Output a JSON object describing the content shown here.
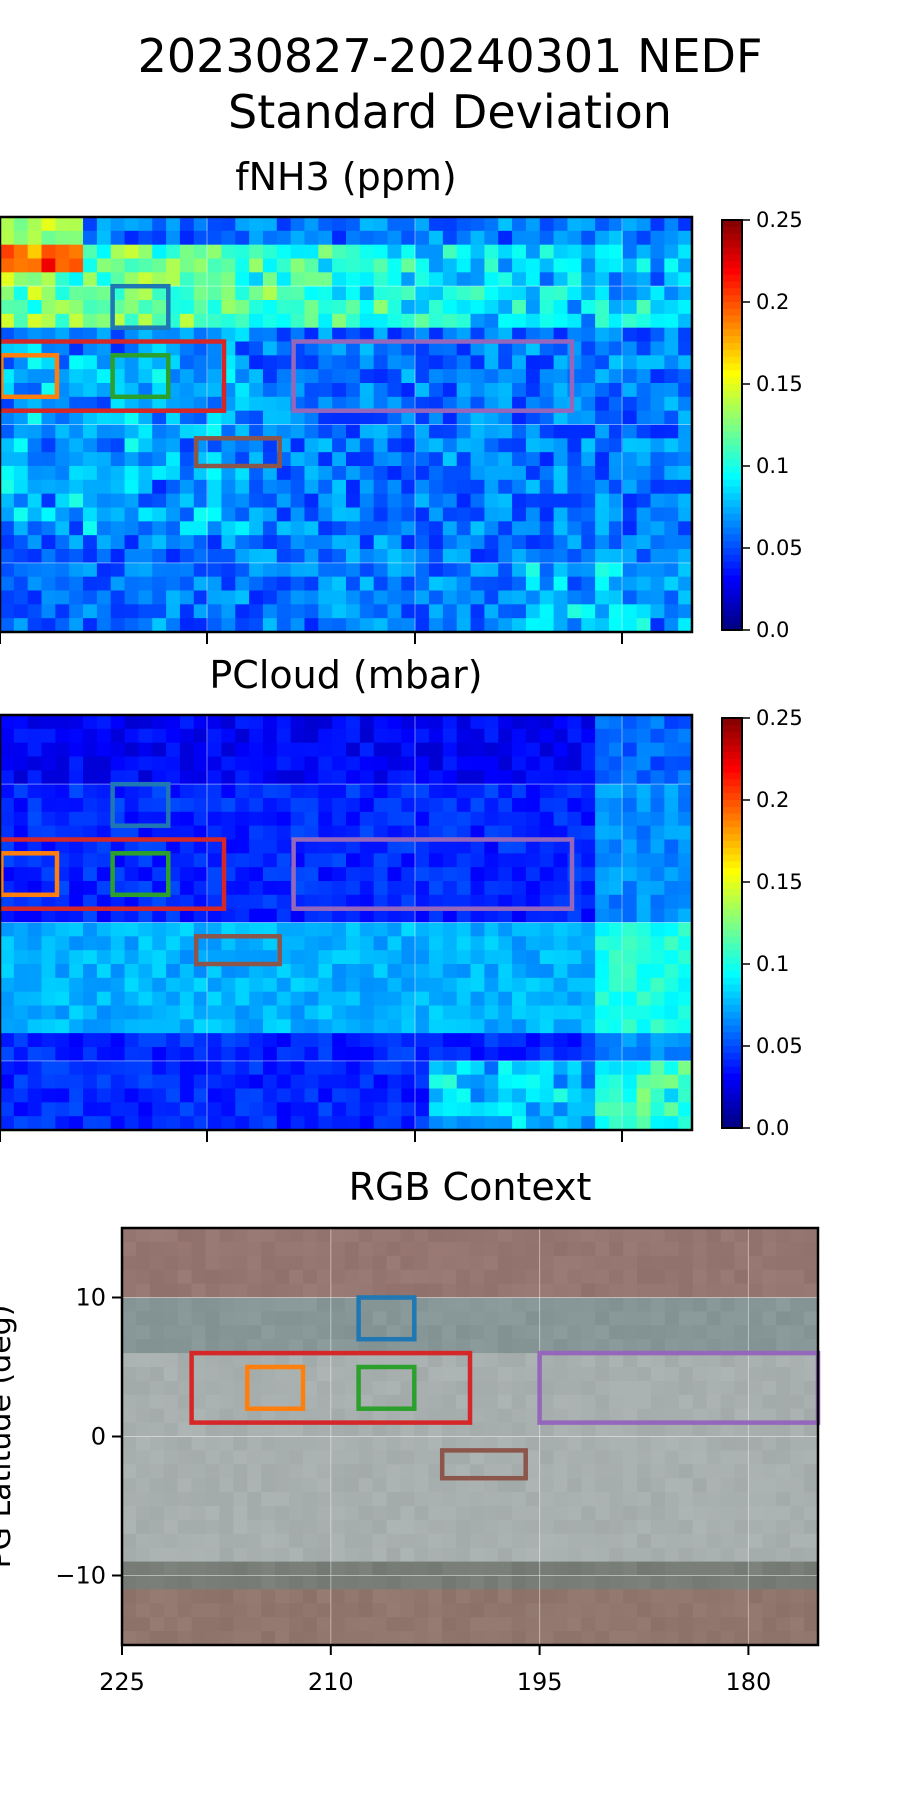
{
  "figure": {
    "title_line1": "20230827-20240301 NEDF",
    "title_line2": "Standard Deviation"
  },
  "chart_data": [
    {
      "type": "heatmap",
      "title": "fNH3 (ppm)",
      "colorbar": {
        "colormap": "jet",
        "range": [
          0.0,
          0.25
        ],
        "ticks": [
          "0.0",
          "0.05",
          "0.1",
          "0.15",
          "0.2",
          "0.25"
        ]
      },
      "xlim": [
        225,
        175
      ],
      "ylim": [
        -15,
        15
      ],
      "grid": true,
      "x_tick_labels_visible": false,
      "description_of_field": "low values (0.02-0.06) across most of the map, higher values (0.08-0.2) in a band near latitude +9 to +12 and in the upper-left corner"
    },
    {
      "type": "heatmap",
      "title": "PCloud (mbar)",
      "colorbar": {
        "colormap": "jet",
        "range": [
          0.0,
          0.25
        ],
        "ticks": [
          "0.0",
          "0.05",
          "0.1",
          "0.15",
          "0.2",
          "0.25"
        ]
      },
      "xlim": [
        225,
        175
      ],
      "ylim": [
        -15,
        15
      ],
      "grid": true,
      "x_tick_labels_visible": false
    },
    {
      "type": "heatmap",
      "title": "RGB Context",
      "xlim": [
        225,
        175
      ],
      "ylim": [
        -15,
        15
      ],
      "xticks": [
        225,
        210,
        195,
        180
      ],
      "xtick_labels": [
        "225",
        "210",
        "195",
        "180"
      ],
      "yticks": [
        10,
        0,
        -10
      ],
      "ytick_labels": [
        "10",
        "0",
        "−10"
      ],
      "ylabel": "PG Latitude (deg)",
      "grid": true
    }
  ],
  "regions": [
    {
      "name": "blue",
      "color": "#1f77b4",
      "lon": [
        208,
        204
      ],
      "lat": [
        7,
        10
      ]
    },
    {
      "name": "red",
      "color": "#d62728",
      "lon": [
        220,
        200
      ],
      "lat": [
        1,
        6
      ]
    },
    {
      "name": "orange",
      "color": "#ff7f0e",
      "lon": [
        216,
        212
      ],
      "lat": [
        2,
        5
      ]
    },
    {
      "name": "green",
      "color": "#2ca02c",
      "lon": [
        208,
        204
      ],
      "lat": [
        2,
        5
      ]
    },
    {
      "name": "purple",
      "color": "#9467bd",
      "lon": [
        195,
        175
      ],
      "lat": [
        1,
        6
      ]
    },
    {
      "name": "brown",
      "color": "#8c564b",
      "lon": [
        202,
        196
      ],
      "lat": [
        -3,
        -1
      ]
    }
  ]
}
